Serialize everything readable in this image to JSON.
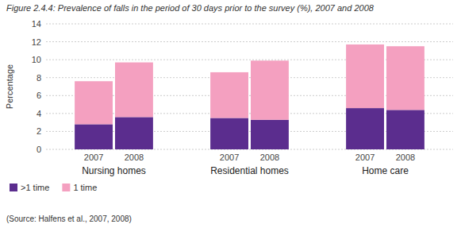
{
  "chart_data": {
    "type": "bar",
    "stacked": true,
    "title": "Figure 2.4.4: Prevalence of falls in the period of 30 days prior to the survey (%), 2007 and 2008",
    "source": "(Source: Halfens et al., 2007, 2008)",
    "ylabel": "Percentage",
    "categories": [
      "2007",
      "2008",
      "2007",
      "2008",
      "2007",
      "2008"
    ],
    "annotations": [
      "Nursing homes",
      "Residential homes",
      "Home care"
    ],
    "series": [
      {
        "name": ">1 time",
        "color": "#5b2d8e",
        "values": [
          2.8,
          3.6,
          3.5,
          3.3,
          4.6,
          4.4
        ]
      },
      {
        "name": "1 time",
        "color": "#f4a0c0",
        "values": [
          4.8,
          6.1,
          5.1,
          6.6,
          7.1,
          7.1
        ]
      }
    ],
    "ylim": [
      0,
      14
    ],
    "yticks": [
      0,
      2,
      4,
      6,
      8,
      10,
      12,
      14
    ],
    "grid": true,
    "legend": "lower left"
  }
}
